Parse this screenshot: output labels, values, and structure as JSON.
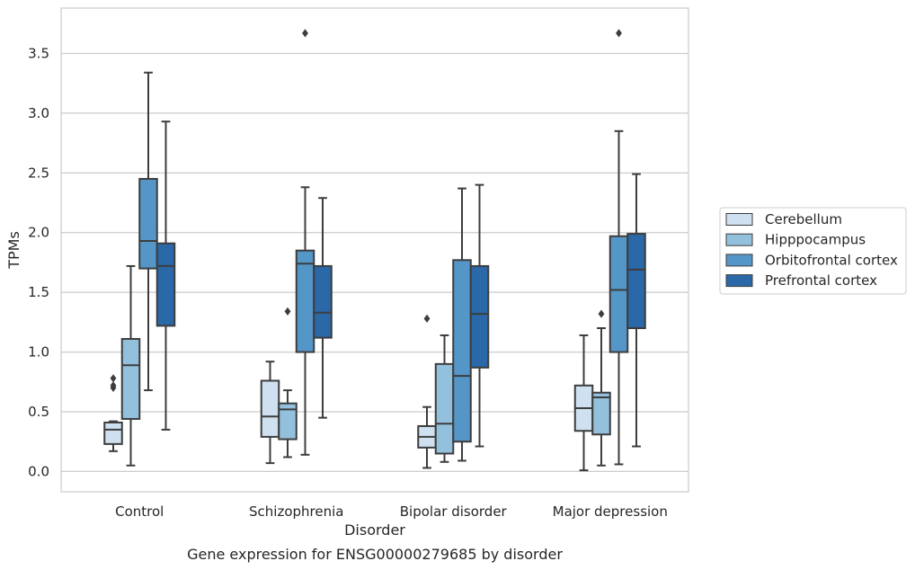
{
  "chart_data": {
    "type": "box",
    "title": "",
    "caption": "Gene expression for ENSG00000279685 by disorder",
    "xlabel": "Disorder",
    "ylabel": "TPMs",
    "ylim": [
      -0.17,
      3.88
    ],
    "yticks": [
      0.0,
      0.5,
      1.0,
      1.5,
      2.0,
      2.5,
      3.0,
      3.5
    ],
    "ytick_labels": [
      "0.0",
      "0.5",
      "1.0",
      "1.5",
      "2.0",
      "2.5",
      "3.0",
      "3.5"
    ],
    "grid": "horizontal",
    "legend_position": "right",
    "categories": [
      "Control",
      "Schizophrenia",
      "Bipolar disorder",
      "Major depression"
    ],
    "series": [
      {
        "name": "Cerebellum",
        "color": "#cfe0f0",
        "boxes": [
          {
            "min": 0.17,
            "q1": 0.23,
            "median": 0.35,
            "q3": 0.41,
            "max": 0.42,
            "outliers": [
              0.7,
              0.72,
              0.78
            ]
          },
          {
            "min": 0.07,
            "q1": 0.29,
            "median": 0.46,
            "q3": 0.76,
            "max": 0.92,
            "outliers": []
          },
          {
            "min": 0.03,
            "q1": 0.2,
            "median": 0.29,
            "q3": 0.38,
            "max": 0.54,
            "outliers": [
              1.28
            ]
          },
          {
            "min": 0.01,
            "q1": 0.34,
            "median": 0.53,
            "q3": 0.72,
            "max": 1.14,
            "outliers": []
          }
        ]
      },
      {
        "name": "Hipppocampus",
        "color": "#93c0dc",
        "boxes": [
          {
            "min": 0.05,
            "q1": 0.44,
            "median": 0.89,
            "q3": 1.11,
            "max": 1.72,
            "outliers": []
          },
          {
            "min": 0.12,
            "q1": 0.27,
            "median": 0.52,
            "q3": 0.57,
            "max": 0.68,
            "outliers": [
              1.34
            ]
          },
          {
            "min": 0.08,
            "q1": 0.15,
            "median": 0.4,
            "q3": 0.9,
            "max": 1.14,
            "outliers": []
          },
          {
            "min": 0.05,
            "q1": 0.31,
            "median": 0.62,
            "q3": 0.66,
            "max": 1.2,
            "outliers": [
              1.32
            ]
          }
        ]
      },
      {
        "name": "Orbitofrontal cortex",
        "color": "#5596c8",
        "boxes": [
          {
            "min": 0.68,
            "q1": 1.7,
            "median": 1.93,
            "q3": 2.45,
            "max": 3.34,
            "outliers": []
          },
          {
            "min": 0.14,
            "q1": 1.0,
            "median": 1.74,
            "q3": 1.85,
            "max": 2.38,
            "outliers": [
              3.67
            ]
          },
          {
            "min": 0.09,
            "q1": 0.25,
            "median": 0.8,
            "q3": 1.77,
            "max": 2.37,
            "outliers": []
          },
          {
            "min": 0.06,
            "q1": 1.0,
            "median": 1.52,
            "q3": 1.97,
            "max": 2.85,
            "outliers": [
              3.67
            ]
          }
        ]
      },
      {
        "name": "Prefrontal cortex",
        "color": "#2a68a8",
        "boxes": [
          {
            "min": 0.35,
            "q1": 1.22,
            "median": 1.72,
            "q3": 1.91,
            "max": 2.93,
            "outliers": []
          },
          {
            "min": 0.45,
            "q1": 1.12,
            "median": 1.33,
            "q3": 1.72,
            "max": 2.29,
            "outliers": []
          },
          {
            "min": 0.21,
            "q1": 0.87,
            "median": 1.32,
            "q3": 1.72,
            "max": 2.4,
            "outliers": []
          },
          {
            "min": 0.21,
            "q1": 1.2,
            "median": 1.69,
            "q3": 1.99,
            "max": 2.49,
            "outliers": []
          }
        ]
      }
    ]
  }
}
